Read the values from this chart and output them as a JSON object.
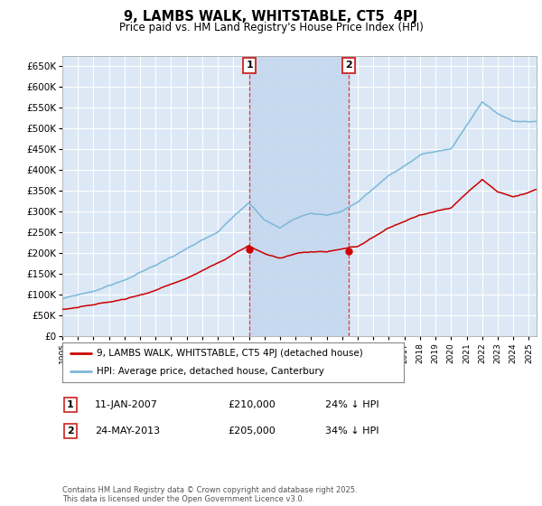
{
  "title": "9, LAMBS WALK, WHITSTABLE, CT5  4PJ",
  "subtitle": "Price paid vs. HM Land Registry's House Price Index (HPI)",
  "legend_label1": "9, LAMBS WALK, WHITSTABLE, CT5 4PJ (detached house)",
  "legend_label2": "HPI: Average price, detached house, Canterbury",
  "annotation1_label": "1",
  "annotation1_date": "11-JAN-2007",
  "annotation1_price": "£210,000",
  "annotation1_hpi": "24% ↓ HPI",
  "annotation2_label": "2",
  "annotation2_date": "24-MAY-2013",
  "annotation2_price": "£205,000",
  "annotation2_hpi": "34% ↓ HPI",
  "sale1_year": 2007.04,
  "sale1_price": 210000,
  "sale2_year": 2013.4,
  "sale2_price": 205000,
  "hpi_color": "#7ab8d9",
  "price_color": "#cc0000",
  "vline_color": "#ee3333",
  "background_color": "#dce8f5",
  "grid_color": "#ffffff",
  "shaded_color": "#c5d8ee",
  "ylim": [
    0,
    675000
  ],
  "xlim_start": 1995.0,
  "xlim_end": 2025.5,
  "footnote": "Contains HM Land Registry data © Crown copyright and database right 2025.\nThis data is licensed under the Open Government Licence v3.0."
}
